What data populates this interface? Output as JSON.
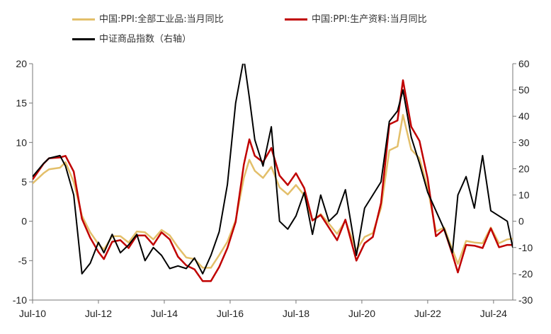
{
  "chart_data": {
    "type": "line",
    "x_ticks": [
      "Jul-10",
      "Jul-12",
      "Jul-14",
      "Jul-16",
      "Jul-18",
      "Jul-20",
      "Jul-22",
      "Jul-24"
    ],
    "x_start": "2010-07",
    "x_end": "2025-02",
    "y_left": {
      "ylim": [
        -10,
        20
      ],
      "ticks": [
        -10,
        -5,
        0,
        5,
        10,
        15,
        20
      ]
    },
    "y_right": {
      "ylim": [
        -30,
        60
      ],
      "ticks": [
        -30,
        -20,
        -10,
        0,
        10,
        20,
        30,
        40,
        50,
        60
      ]
    },
    "grid": false,
    "legend_position": "top-left",
    "series": [
      {
        "name": "中国:PPI:全部工业品:当月同比",
        "axis": "left",
        "color": "#E3BF6A",
        "dates": [
          "2010-07",
          "2010-11",
          "2011-01",
          "2011-05",
          "2011-07",
          "2011-10",
          "2012-01",
          "2012-04",
          "2012-07",
          "2012-09",
          "2012-12",
          "2013-03",
          "2013-06",
          "2013-09",
          "2013-12",
          "2014-03",
          "2014-06",
          "2014-09",
          "2014-12",
          "2015-03",
          "2015-06",
          "2015-09",
          "2015-12",
          "2016-03",
          "2016-06",
          "2016-09",
          "2016-12",
          "2017-02",
          "2017-04",
          "2017-07",
          "2017-10",
          "2018-01",
          "2018-04",
          "2018-07",
          "2018-10",
          "2019-01",
          "2019-04",
          "2019-07",
          "2019-10",
          "2020-01",
          "2020-05",
          "2020-08",
          "2020-11",
          "2021-02",
          "2021-05",
          "2021-08",
          "2021-10",
          "2022-01",
          "2022-04",
          "2022-07",
          "2022-10",
          "2023-01",
          "2023-04",
          "2023-06",
          "2023-09",
          "2023-12",
          "2024-03",
          "2024-06",
          "2024-09",
          "2024-12",
          "2025-02"
        ],
        "values": [
          4.8,
          6.1,
          6.6,
          6.8,
          7.5,
          5.0,
          0.7,
          -1.4,
          -2.9,
          -3.6,
          -1.9,
          -1.9,
          -2.7,
          -1.3,
          -1.4,
          -2.3,
          -1.1,
          -1.8,
          -3.3,
          -4.6,
          -4.8,
          -5.9,
          -5.9,
          -4.3,
          -2.6,
          0.1,
          5.5,
          7.8,
          6.4,
          5.5,
          6.9,
          4.3,
          3.4,
          4.6,
          3.3,
          0.1,
          0.9,
          -0.3,
          -1.6,
          0.1,
          -3.7,
          -2.0,
          -1.5,
          1.7,
          9.0,
          9.5,
          13.5,
          9.1,
          8.0,
          4.2,
          -1.3,
          -0.8,
          -3.6,
          -5.4,
          -2.5,
          -2.7,
          -2.8,
          -0.8,
          -2.8,
          -2.3,
          -2.2
        ]
      },
      {
        "name": "中国:PPI:生产资料:当月同比",
        "axis": "left",
        "color": "#C00000",
        "dates": [
          "2010-07",
          "2010-11",
          "2011-01",
          "2011-05",
          "2011-07",
          "2011-10",
          "2012-01",
          "2012-04",
          "2012-07",
          "2012-09",
          "2012-12",
          "2013-03",
          "2013-06",
          "2013-09",
          "2013-12",
          "2014-03",
          "2014-06",
          "2014-09",
          "2014-12",
          "2015-03",
          "2015-06",
          "2015-09",
          "2015-12",
          "2016-03",
          "2016-06",
          "2016-09",
          "2016-12",
          "2017-02",
          "2017-04",
          "2017-07",
          "2017-10",
          "2018-01",
          "2018-04",
          "2018-07",
          "2018-10",
          "2019-01",
          "2019-04",
          "2019-07",
          "2019-10",
          "2020-01",
          "2020-05",
          "2020-08",
          "2020-11",
          "2021-02",
          "2021-05",
          "2021-08",
          "2021-10",
          "2022-01",
          "2022-04",
          "2022-07",
          "2022-10",
          "2023-01",
          "2023-04",
          "2023-06",
          "2023-09",
          "2023-12",
          "2024-03",
          "2024-06",
          "2024-09",
          "2024-12",
          "2025-02"
        ],
        "values": [
          5.3,
          7.3,
          8.0,
          8.1,
          8.3,
          6.3,
          0.3,
          -2.1,
          -3.9,
          -4.8,
          -2.6,
          -2.4,
          -3.4,
          -1.8,
          -1.8,
          -3.0,
          -1.4,
          -2.3,
          -4.5,
          -5.6,
          -6.1,
          -7.6,
          -7.6,
          -5.8,
          -3.4,
          -0.1,
          7.2,
          10.4,
          8.3,
          7.5,
          9.3,
          5.8,
          4.6,
          6.1,
          4.2,
          0.1,
          0.8,
          -0.8,
          -2.4,
          0.2,
          -5.0,
          -2.8,
          -2.0,
          2.3,
          12.3,
          12.8,
          17.9,
          12.0,
          10.2,
          5.4,
          -1.9,
          -1.0,
          -4.2,
          -6.5,
          -3.0,
          -3.1,
          -3.4,
          -0.9,
          -3.3,
          -3.0,
          -3.0
        ]
      },
      {
        "name": "中证商品指数（右轴）",
        "axis": "right",
        "color": "#000000",
        "dates": [
          "2010-07",
          "2010-11",
          "2011-01",
          "2011-05",
          "2011-07",
          "2011-10",
          "2012-01",
          "2012-04",
          "2012-07",
          "2012-09",
          "2012-12",
          "2013-03",
          "2013-06",
          "2013-09",
          "2013-12",
          "2014-03",
          "2014-06",
          "2014-09",
          "2014-12",
          "2015-03",
          "2015-06",
          "2015-09",
          "2015-12",
          "2016-03",
          "2016-06",
          "2016-09",
          "2016-12",
          "2017-02",
          "2017-04",
          "2017-07",
          "2017-10",
          "2018-01",
          "2018-04",
          "2018-07",
          "2018-10",
          "2019-01",
          "2019-04",
          "2019-07",
          "2019-10",
          "2020-01",
          "2020-05",
          "2020-08",
          "2020-11",
          "2021-02",
          "2021-05",
          "2021-08",
          "2021-10",
          "2022-01",
          "2022-04",
          "2022-07",
          "2022-10",
          "2023-01",
          "2023-04",
          "2023-06",
          "2023-09",
          "2023-12",
          "2024-03",
          "2024-06",
          "2024-09",
          "2024-12",
          "2025-02"
        ],
        "values": [
          17,
          22,
          24,
          25,
          21,
          10,
          -20,
          -16,
          -8,
          -12,
          -5,
          -12,
          -9,
          -5,
          -15,
          -10,
          -13,
          -18,
          -17,
          -18,
          -14,
          -20,
          -13,
          -4,
          14,
          45,
          62,
          47,
          31,
          21,
          36,
          0,
          -3,
          2,
          11,
          -5,
          10,
          0,
          3,
          12,
          -13,
          5,
          10,
          15,
          38,
          42,
          50,
          32,
          22,
          11,
          4,
          -3,
          -12,
          10,
          17,
          5,
          25,
          4,
          2,
          0,
          -10
        ]
      }
    ]
  }
}
